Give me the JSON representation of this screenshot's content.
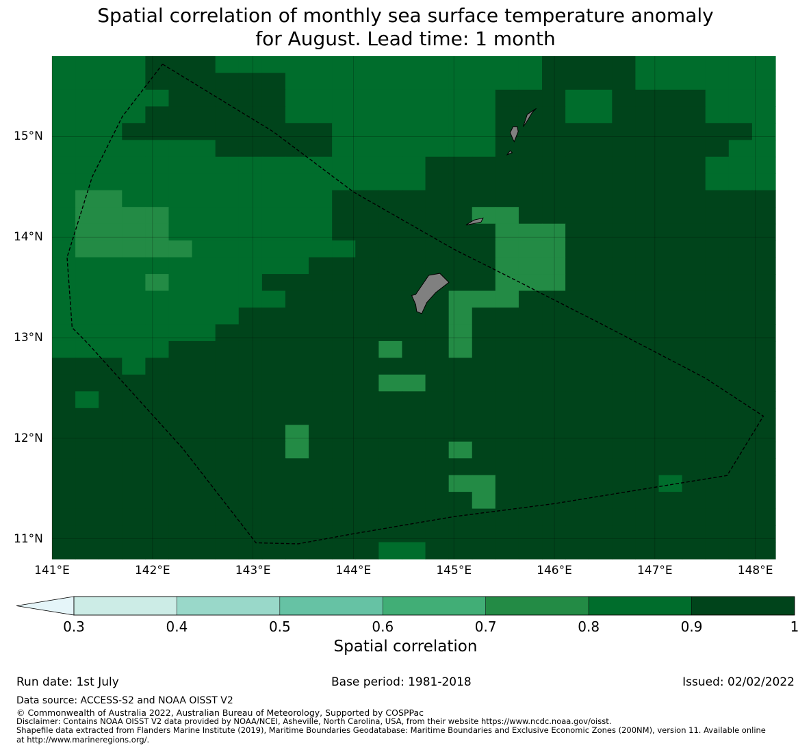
{
  "title": {
    "line1": "Spatial correlation of monthly sea surface temperature anomaly",
    "line2": "for August. Lead time: 1 month"
  },
  "map": {
    "lon_range": [
      141,
      148.2
    ],
    "lat_range": [
      10.8,
      15.8
    ],
    "xticks": [
      {
        "value": 141,
        "label": "141°E"
      },
      {
        "value": 142,
        "label": "142°E"
      },
      {
        "value": 143,
        "label": "143°E"
      },
      {
        "value": 144,
        "label": "144°E"
      },
      {
        "value": 145,
        "label": "145°E"
      },
      {
        "value": 146,
        "label": "146°E"
      },
      {
        "value": 147,
        "label": "147°E"
      },
      {
        "value": 148,
        "label": "148°E"
      }
    ],
    "yticks": [
      {
        "value": 15,
        "label": "15°N"
      },
      {
        "value": 14,
        "label": "14°N"
      },
      {
        "value": 13,
        "label": "13°N"
      },
      {
        "value": 12,
        "label": "12°N"
      },
      {
        "value": 11,
        "label": "11°N"
      }
    ],
    "grid": true,
    "land_color": "#808080",
    "boundary_style": "dashed black",
    "cell_rows": [
      "6666777666666666666667777666666",
      "6666777777666666666667777666666",
      "6666677777666666666777667777666",
      "6666777777666666666777667777666",
      "6667777777776666666777777777776",
      "6666666777776666666777777777766",
      "6666666666666666777777777777666",
      "6666666666666666777777777777666",
      "6556666666667777777777777777777",
      "6555566666667777778877777777777",
      "6555566666667777777888777777777",
      "6555556666666777777888777777777",
      "6666666666677777777888777777777",
      "6666666667777777777888777777777",
      "6666666666777777788877777777777",
      "6666666677777777787777777777777",
      "6666666777777777787777777777777",
      "6666677777777777787777777777777",
      "7776777777777777777777777777777",
      "7777777777777777777777777777777",
      "7777777777777777777777777777777",
      "7777777777777777777777777777777",
      "7777777777777777777777777777777",
      "7777777777777777777777777777777",
      "7777777777777777777777777777777",
      "7777777777777777777777777777777",
      "7777777777777777777777777777777",
      "7777777777777777777777777777777",
      "7777777777777777777777777777777",
      "7777777777777777777777777777777"
    ],
    "cell_overrides": [
      {
        "lon": 141.38,
        "lat": 14.12,
        "class": 5
      },
      {
        "lon": 141.38,
        "lat": 13.88,
        "class": 5
      },
      {
        "lon": 142.13,
        "lat": 13.63,
        "class": 5
      },
      {
        "lon": 141.38,
        "lat": 12.38,
        "class": 6
      },
      {
        "lon": 143.38,
        "lat": 12.13,
        "class": 8
      },
      {
        "lon": 143.38,
        "lat": 11.88,
        "class": 8
      },
      {
        "lon": 145.13,
        "lat": 11.88,
        "class": 8
      },
      {
        "lon": 145.13,
        "lat": 11.63,
        "class": 8
      },
      {
        "lon": 145.38,
        "lat": 11.63,
        "class": 8
      },
      {
        "lon": 145.38,
        "lat": 11.38,
        "class": 8
      },
      {
        "lon": 144.38,
        "lat": 12.88,
        "class": 8
      },
      {
        "lon": 144.38,
        "lat": 12.63,
        "class": 8
      },
      {
        "lon": 144.63,
        "lat": 12.63,
        "class": 8
      },
      {
        "lon": 147.13,
        "lat": 11.63,
        "class": 6
      },
      {
        "lon": 144.38,
        "lat": 10.88,
        "class": 6
      },
      {
        "lon": 144.63,
        "lat": 10.88,
        "class": 6
      }
    ],
    "eez_boundary": [
      [
        142.1,
        15.72
      ],
      [
        143.2,
        15.05
      ],
      [
        144.0,
        14.45
      ],
      [
        145.0,
        13.88
      ],
      [
        145.5,
        13.63
      ],
      [
        146.5,
        13.12
      ],
      [
        147.5,
        12.6
      ],
      [
        148.08,
        12.22
      ],
      [
        147.72,
        11.63
      ],
      [
        146.0,
        11.35
      ],
      [
        145.0,
        11.22
      ],
      [
        144.0,
        11.05
      ],
      [
        143.45,
        10.95
      ],
      [
        143.03,
        10.96
      ],
      [
        142.3,
        11.9
      ],
      [
        141.35,
        12.95
      ],
      [
        141.2,
        13.1
      ],
      [
        141.15,
        13.8
      ],
      [
        141.4,
        14.6
      ],
      [
        141.7,
        15.2
      ],
      [
        142.1,
        15.72
      ]
    ],
    "islands": [
      [
        [
          144.62,
          13.43
        ],
        [
          144.75,
          13.62
        ],
        [
          144.86,
          13.64
        ],
        [
          144.95,
          13.55
        ],
        [
          144.82,
          13.45
        ],
        [
          144.73,
          13.35
        ],
        [
          144.68,
          13.24
        ],
        [
          144.63,
          13.26
        ],
        [
          144.62,
          13.33
        ],
        [
          144.58,
          13.42
        ]
      ],
      [
        [
          145.12,
          14.12
        ],
        [
          145.2,
          14.17
        ],
        [
          145.29,
          14.19
        ],
        [
          145.27,
          14.15
        ],
        [
          145.17,
          14.13
        ]
      ],
      [
        [
          145.6,
          14.95
        ],
        [
          145.64,
          15.05
        ],
        [
          145.63,
          15.1
        ],
        [
          145.59,
          15.1
        ],
        [
          145.56,
          15.04
        ],
        [
          145.59,
          14.97
        ]
      ],
      [
        [
          145.69,
          15.1
        ],
        [
          145.73,
          15.22
        ],
        [
          145.82,
          15.28
        ],
        [
          145.78,
          15.24
        ],
        [
          145.72,
          15.14
        ]
      ],
      [
        [
          145.53,
          14.82
        ],
        [
          145.58,
          14.84
        ],
        [
          145.56,
          14.86
        ]
      ]
    ]
  },
  "colorbar": {
    "label": "Spatial correlation",
    "colors": [
      "#e5f5f9",
      "#ccece6",
      "#99d8c9",
      "#66c2a4",
      "#41ae76",
      "#238b45",
      "#006d2c",
      "#00441b"
    ],
    "ticks": [
      "0.3",
      "0.4",
      "0.5",
      "0.6",
      "0.7",
      "0.8",
      "0.9",
      "1"
    ]
  },
  "footer": {
    "run_date": "Run date: 1st July",
    "base_period": "Base period: 1981-2018",
    "issued": "Issued: 02/02/2022",
    "data_source": "Data source: ACCESS-S2 and NOAA OISST V2",
    "copyright": "© Commonwealth of Australia 2022, Australian Bureau of Meteorology, Supported by COSPPac",
    "disclaimer": "Disclaimer: Contains NOAA OISST V2 data provided by NOAA/NCEI, Asheville, North Carolina, USA, from their website https://www.ncdc.noaa.gov/oisst.",
    "shapefile_line1": "Shapefile data extracted from Flanders Marine Institute (2019), Maritime Boundaries Geodatabase: Maritime Boundaries and Exclusive Economic Zones (200NM), version 11. Available online",
    "shapefile_line2": "at http://www.marineregions.org/."
  }
}
